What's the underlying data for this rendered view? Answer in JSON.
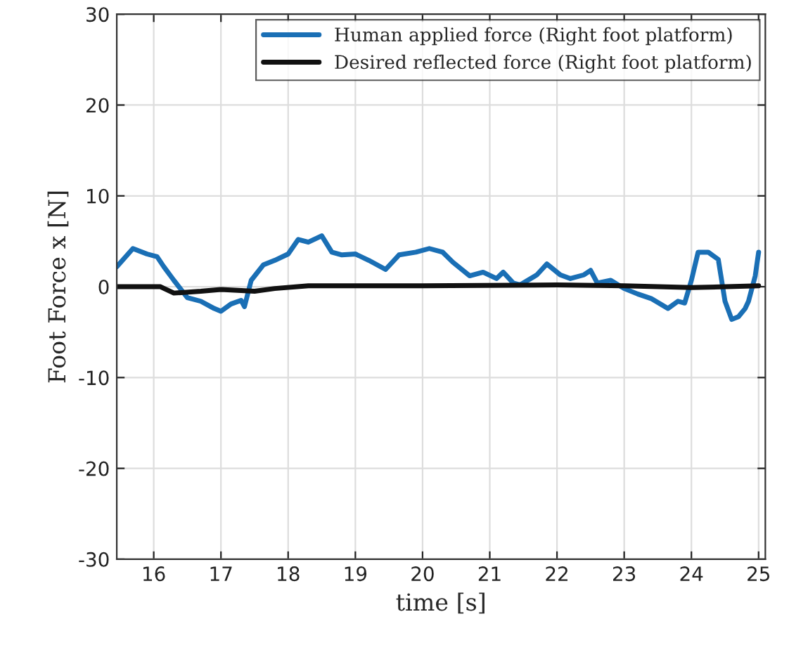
{
  "chart_data": {
    "type": "line",
    "xlabel": "time [s]",
    "ylabel": "Foot Force x [N]",
    "xlim": [
      15.45,
      25.1
    ],
    "xticks": [
      16,
      17,
      18,
      19,
      20,
      21,
      22,
      23,
      24,
      25
    ],
    "ylim": [
      -30,
      30
    ],
    "yticks": [
      -30,
      -20,
      -10,
      0,
      10,
      20,
      30
    ],
    "grid": true,
    "legend": "top right",
    "line_style": "solid",
    "marker": "none",
    "series": [
      {
        "name": "Human applied force (Right foot platform)",
        "color": "#1a6fb5",
        "x": [
          15.45,
          15.69,
          15.9,
          16.05,
          16.15,
          16.3,
          16.5,
          16.7,
          16.9,
          17.0,
          17.15,
          17.3,
          17.35,
          17.45,
          17.63,
          17.8,
          18.0,
          18.15,
          18.3,
          18.5,
          18.65,
          18.8,
          19.0,
          19.2,
          19.45,
          19.65,
          19.9,
          20.1,
          20.3,
          20.45,
          20.7,
          20.9,
          21.1,
          21.2,
          21.35,
          21.45,
          21.7,
          21.85,
          22.05,
          22.2,
          22.4,
          22.5,
          22.6,
          22.8,
          23.0,
          23.2,
          23.4,
          23.65,
          23.8,
          23.9,
          24.0,
          24.1,
          24.25,
          24.4,
          24.5,
          24.6,
          24.7,
          24.8,
          24.85,
          24.95,
          25.0
        ],
        "values": [
          2.2,
          4.2,
          3.6,
          3.3,
          2.2,
          0.7,
          -1.2,
          -1.6,
          -2.4,
          -2.7,
          -1.9,
          -1.5,
          -2.2,
          0.7,
          2.4,
          2.9,
          3.6,
          5.2,
          4.9,
          5.6,
          3.8,
          3.5,
          3.6,
          2.9,
          1.9,
          3.5,
          3.8,
          4.2,
          3.8,
          2.7,
          1.2,
          1.6,
          0.9,
          1.6,
          0.4,
          0.2,
          1.3,
          2.5,
          1.3,
          0.9,
          1.3,
          1.8,
          0.4,
          0.7,
          -0.2,
          -0.8,
          -1.3,
          -2.4,
          -1.6,
          -1.8,
          0.7,
          3.8,
          3.8,
          3.0,
          -1.6,
          -3.6,
          -3.3,
          -2.4,
          -1.6,
          1.2,
          3.8
        ]
      },
      {
        "name": "Desired reflected force (Right foot platform)",
        "color": "#111111",
        "x": [
          15.45,
          16.1,
          16.3,
          16.7,
          17.0,
          17.5,
          17.8,
          18.3,
          19.0,
          20.0,
          22.0,
          23.0,
          24.0,
          25.0
        ],
        "values": [
          0,
          0,
          -0.7,
          -0.5,
          -0.3,
          -0.5,
          -0.2,
          0.1,
          0.1,
          0.1,
          0.2,
          0.1,
          -0.1,
          0.1
        ]
      }
    ]
  }
}
